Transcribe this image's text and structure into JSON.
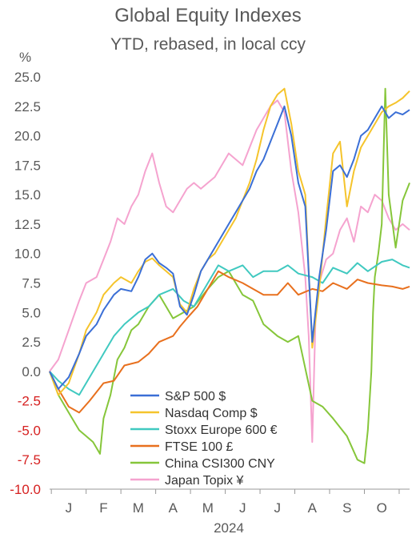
{
  "chart_data": {
    "type": "line",
    "title": "Global Equity Indexes",
    "subtitle": "YTD, rebased, in local ccy",
    "ylabel": "%",
    "xlabel": "2024",
    "ylim": [
      -10,
      25
    ],
    "yticks": [
      "25.0",
      "22.5",
      "20.0",
      "17.5",
      "15.0",
      "12.5",
      "10.0",
      "7.5",
      "5.0",
      "2.5",
      "0.0",
      "-2.5",
      "-5.0",
      "-7.5",
      "-10.0"
    ],
    "ytick_values": [
      25,
      22.5,
      20,
      17.5,
      15,
      12.5,
      10,
      7.5,
      5,
      2.5,
      0,
      -2.5,
      -5,
      -7.5,
      -10
    ],
    "negative_tick_color": "#d62020",
    "months": [
      "J",
      "F",
      "M",
      "A",
      "M",
      "J",
      "J",
      "A",
      "S",
      "O"
    ],
    "month_index": [
      0,
      1,
      2,
      3,
      4,
      5,
      6,
      7,
      8,
      9
    ],
    "xlim": [
      -0.55,
      9.8
    ],
    "grid": false,
    "legend_position": "bottom-center",
    "series": [
      {
        "name": "S&P 500 $",
        "color": "#3b6fd6",
        "x": [
          -0.55,
          -0.3,
          0,
          0.3,
          0.5,
          0.8,
          1,
          1.3,
          1.5,
          1.8,
          2,
          2.2,
          2.4,
          2.6,
          2.8,
          3,
          3.2,
          3.4,
          3.6,
          3.8,
          4,
          4.2,
          4.4,
          4.6,
          4.8,
          5,
          5.2,
          5.4,
          5.6,
          5.8,
          6,
          6.2,
          6.4,
          6.6,
          6.8,
          7,
          7.2,
          7.4,
          7.6,
          7.8,
          8,
          8.2,
          8.4,
          8.6,
          8.8,
          9,
          9.2,
          9.4,
          9.6,
          9.8
        ],
        "y": [
          0,
          -1.5,
          -0.5,
          1.5,
          3,
          4,
          5.2,
          6.5,
          7,
          6.8,
          8,
          9.5,
          10,
          9.2,
          8.8,
          8.3,
          5.5,
          4.8,
          6.5,
          8.5,
          9.5,
          10.5,
          11.5,
          12.5,
          13.5,
          14.5,
          15.5,
          17,
          18,
          19.5,
          21,
          22.5,
          20,
          16,
          14,
          2.5,
          8,
          12,
          17,
          17.5,
          16.5,
          18,
          20,
          20.5,
          21.5,
          22.5,
          21.5,
          22,
          21.8,
          22.2
        ]
      },
      {
        "name": "Nasdaq Comp $",
        "color": "#f5c42c",
        "x": [
          -0.55,
          -0.3,
          0,
          0.3,
          0.5,
          0.8,
          1,
          1.3,
          1.5,
          1.8,
          2,
          2.2,
          2.4,
          2.6,
          2.8,
          3,
          3.2,
          3.4,
          3.6,
          3.8,
          4,
          4.2,
          4.4,
          4.6,
          4.8,
          5,
          5.2,
          5.4,
          5.6,
          5.8,
          6,
          6.2,
          6.4,
          6.6,
          6.8,
          7,
          7.2,
          7.4,
          7.6,
          7.8,
          8,
          8.2,
          8.4,
          8.6,
          8.8,
          9,
          9.2,
          9.4,
          9.6,
          9.8
        ],
        "y": [
          0,
          -2,
          -1,
          1.5,
          3.5,
          5,
          6.5,
          7.5,
          8,
          7.5,
          8.5,
          9.3,
          9.6,
          9,
          8.5,
          8,
          5.7,
          5,
          7,
          8.5,
          9.5,
          10,
          11,
          12,
          13,
          14.5,
          16,
          18,
          20.5,
          22.5,
          23.5,
          24,
          21,
          17,
          15,
          2,
          7,
          13,
          18.5,
          19.5,
          14,
          17,
          19,
          20,
          21,
          22,
          22.5,
          22.8,
          23.2,
          23.8
        ]
      },
      {
        "name": "Stoxx Europe 600 €",
        "color": "#40c9c0",
        "x": [
          -0.55,
          -0.3,
          0,
          0.3,
          0.6,
          1,
          1.3,
          1.6,
          2,
          2.3,
          2.6,
          3,
          3.3,
          3.6,
          4,
          4.3,
          4.6,
          5,
          5.3,
          5.6,
          6,
          6.3,
          6.6,
          7,
          7.3,
          7.6,
          8,
          8.3,
          8.6,
          9,
          9.3,
          9.6,
          9.8
        ],
        "y": [
          0,
          -0.8,
          -1.5,
          -2,
          -0.5,
          1.5,
          3,
          4,
          5,
          5.5,
          6.5,
          7,
          6,
          5.5,
          7.5,
          9,
          8.5,
          9,
          8,
          8.5,
          8.5,
          9,
          8.3,
          8,
          7.5,
          8.8,
          8.3,
          9.2,
          8.5,
          9.3,
          9.5,
          9,
          8.8
        ]
      },
      {
        "name": "FTSE 100 £",
        "color": "#e8701e",
        "x": [
          -0.55,
          -0.3,
          0,
          0.3,
          0.6,
          1,
          1.3,
          1.6,
          2,
          2.3,
          2.6,
          3,
          3.2,
          3.4,
          3.7,
          4,
          4.3,
          4.6,
          5,
          5.3,
          5.6,
          6,
          6.3,
          6.6,
          7,
          7.3,
          7.6,
          8,
          8.3,
          8.6,
          9,
          9.3,
          9.6,
          9.8
        ],
        "y": [
          0,
          -1.5,
          -3,
          -3.5,
          -2.5,
          -1,
          -0.8,
          0.5,
          0.8,
          1.5,
          2.5,
          3,
          3.8,
          4.5,
          5.5,
          7,
          8.5,
          8,
          7.5,
          7,
          6.5,
          6.5,
          7.5,
          6.5,
          7,
          6.8,
          7.5,
          7,
          7.8,
          7.5,
          7.3,
          7.2,
          7,
          7.2
        ]
      },
      {
        "name": "China CSI300 CNY",
        "color": "#86c63a",
        "x": [
          -0.55,
          -0.3,
          0,
          0.3,
          0.5,
          0.7,
          0.9,
          1,
          1.2,
          1.4,
          1.6,
          1.8,
          2,
          2.3,
          2.6,
          3,
          3.3,
          3.6,
          4,
          4.3,
          4.6,
          5,
          5.3,
          5.6,
          6,
          6.3,
          6.6,
          7,
          7.3,
          7.6,
          8,
          8.3,
          8.5,
          8.6,
          8.7,
          8.75,
          8.8,
          8.9,
          9,
          9.1,
          9.2,
          9.4,
          9.6,
          9.8
        ],
        "y": [
          0,
          -2,
          -3.5,
          -5,
          -5.5,
          -6,
          -7,
          -4,
          -2,
          1,
          2,
          3.5,
          4,
          5.5,
          6.5,
          4.5,
          5,
          5.5,
          7,
          8,
          8.5,
          6.5,
          6,
          4,
          3,
          2.5,
          3,
          -2.5,
          -3,
          -4,
          -5.5,
          -7.5,
          -7.8,
          -5,
          0,
          5,
          8,
          10,
          12.5,
          24,
          15,
          10.5,
          14.5,
          16
        ]
      },
      {
        "name": "Japan Topix ¥",
        "color": "#f5a3cf",
        "x": [
          -0.55,
          -0.3,
          0,
          0.3,
          0.5,
          0.8,
          1,
          1.2,
          1.4,
          1.6,
          1.8,
          2,
          2.2,
          2.4,
          2.6,
          2.8,
          3,
          3.2,
          3.4,
          3.6,
          3.8,
          4,
          4.2,
          4.4,
          4.6,
          4.8,
          5,
          5.2,
          5.4,
          5.6,
          5.8,
          6,
          6.2,
          6.4,
          6.6,
          6.8,
          6.9,
          7,
          7.1,
          7.2,
          7.4,
          7.6,
          7.8,
          8,
          8.2,
          8.4,
          8.6,
          8.8,
          9,
          9.2,
          9.4,
          9.6,
          9.8
        ],
        "y": [
          0,
          1,
          3.5,
          6,
          7.5,
          8,
          9.5,
          11,
          13,
          12.5,
          14,
          15,
          17,
          18.5,
          16,
          14,
          13.5,
          14.5,
          15.5,
          16,
          15.5,
          16,
          16.5,
          17.5,
          18.5,
          18,
          17.5,
          19,
          20.5,
          21.5,
          22.5,
          23,
          22,
          17,
          13.5,
          8,
          3,
          -6,
          5,
          7.5,
          9.5,
          10,
          12,
          13,
          11,
          14,
          13.5,
          15,
          14.5,
          13,
          12,
          12.5,
          12
        ]
      }
    ]
  }
}
